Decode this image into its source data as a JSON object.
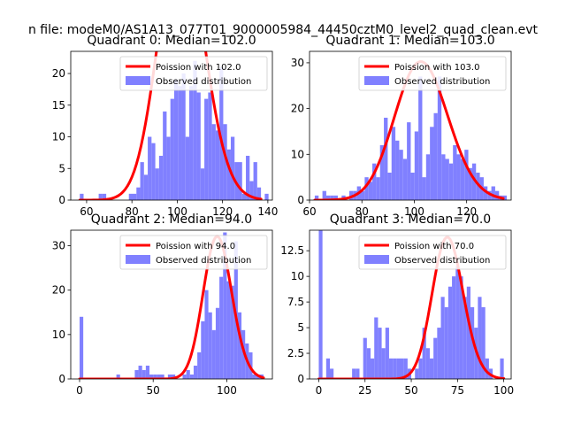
{
  "figure": {
    "suptitle": "n file: modeM0/AS1A13_077T01_9000005984_44450cztM0_level2_quad_clean.evt",
    "colors": {
      "hist": "#8080ff",
      "curve": "#ff0000",
      "curve_faded": "#ff8080"
    }
  },
  "chart_data": [
    {
      "type": "bar",
      "title": "Quadrant 0: Median=102.0",
      "xlim": [
        53,
        142
      ],
      "ylim": [
        0,
        23.5
      ],
      "xticks": [
        60,
        80,
        100,
        120,
        140
      ],
      "yticks": [
        0,
        5,
        10,
        15,
        20
      ],
      "legend": {
        "placement": "top-right",
        "entries": [
          "Poission with 102.0",
          "Observed distribution"
        ]
      },
      "hist": {
        "name": "Observed distribution",
        "bin_start": 57,
        "bin_width": 1.666,
        "counts": [
          1,
          0,
          0,
          0,
          0,
          1,
          1,
          0,
          0,
          0,
          0,
          0,
          0,
          1,
          1,
          2,
          6,
          4,
          10,
          9,
          5,
          7,
          14,
          10,
          16,
          19,
          18,
          20,
          10,
          18,
          22,
          17,
          5,
          16,
          17,
          12,
          11,
          21,
          12,
          8,
          10,
          6,
          6,
          1,
          7,
          3,
          6,
          2,
          0,
          1
        ]
      },
      "poisson": {
        "name": "Poission with 102.0",
        "lambda": 102.0,
        "scale": 1060,
        "x_start": 57,
        "x_end": 137
      }
    },
    {
      "type": "bar",
      "title": "Quadrant 1: Median=103.0",
      "xlim": [
        60,
        137
      ],
      "ylim": [
        0,
        32.5
      ],
      "xticks": [
        60,
        80,
        100,
        120
      ],
      "yticks": [
        0,
        10,
        20,
        30
      ],
      "legend": {
        "placement": "top-right",
        "entries": [
          "Poission with 103.0",
          "Observed distribution"
        ]
      },
      "hist": {
        "name": "Observed distribution",
        "bin_start": 62,
        "bin_width": 1.466,
        "counts": [
          1,
          0,
          2,
          1,
          1,
          1,
          0,
          1,
          0,
          2,
          2,
          3,
          2,
          5,
          4,
          8,
          5,
          12,
          18,
          6,
          16,
          13,
          11,
          9,
          17,
          6,
          15,
          27,
          5,
          10,
          16,
          19,
          27,
          10,
          9,
          8,
          12,
          10,
          9,
          11,
          7,
          8,
          6,
          5,
          3,
          2,
          3,
          2,
          1,
          1
        ]
      },
      "poisson": {
        "name": "Poission with 103.0",
        "lambda": 103.0,
        "scale": 770,
        "x_start": 62,
        "x_end": 134
      }
    },
    {
      "type": "bar",
      "title": "Quadrant 2: Median=94.0",
      "xlim": [
        -6,
        131
      ],
      "ylim": [
        0,
        33.5
      ],
      "xticks": [
        0,
        50,
        100
      ],
      "yticks": [
        0,
        10,
        20,
        30
      ],
      "legend": {
        "placement": "top-right",
        "entries": [
          "Poission with 94.0",
          "Observed distribution"
        ]
      },
      "hist": {
        "name": "Observed distribution",
        "bin_start": 0,
        "bin_width": 2.5,
        "counts": [
          14,
          0,
          0,
          0,
          0,
          0,
          0,
          0,
          0,
          0,
          1,
          0,
          0,
          0,
          0,
          2,
          3,
          2,
          3,
          1,
          1,
          1,
          1,
          0,
          1,
          1,
          0,
          0,
          1,
          2,
          1,
          3,
          6,
          13,
          20,
          15,
          11,
          16,
          23,
          33,
          22,
          21,
          31,
          15,
          11,
          8,
          6,
          1,
          1,
          1
        ]
      },
      "poisson": {
        "name": "Poission with 94.0",
        "lambda": 94.0,
        "scale": 780,
        "x_start": 0,
        "x_end": 125
      }
    },
    {
      "type": "bar",
      "title": "Quadrant 3: Median=70.0",
      "xlim": [
        -5,
        104
      ],
      "ylim": [
        0,
        14.5
      ],
      "xticks": [
        0,
        25,
        50,
        75,
        100
      ],
      "yticks": [
        0,
        2.5,
        5.0,
        7.5,
        10.0,
        12.5
      ],
      "legend": {
        "placement": "top-right",
        "entries": [
          "Poission with 70.0",
          "Observed distribution"
        ]
      },
      "hist": {
        "name": "Observed distribution",
        "bin_start": 0,
        "bin_width": 2.0,
        "counts": [
          15,
          0,
          2,
          1,
          0,
          0,
          0,
          0,
          0,
          1,
          1,
          0,
          4,
          3,
          2,
          6,
          5,
          3,
          5,
          2,
          2,
          2,
          2,
          2,
          1,
          0,
          1,
          2,
          5,
          3,
          2,
          4,
          5,
          8,
          7,
          9,
          10,
          11,
          10,
          8,
          9,
          7,
          5,
          8,
          7,
          2,
          1,
          0,
          0,
          2
        ]
      },
      "poisson": {
        "name": "Poission with 70.0",
        "lambda": 70.0,
        "scale": 290,
        "x_start": 0,
        "x_end": 100
      }
    }
  ]
}
